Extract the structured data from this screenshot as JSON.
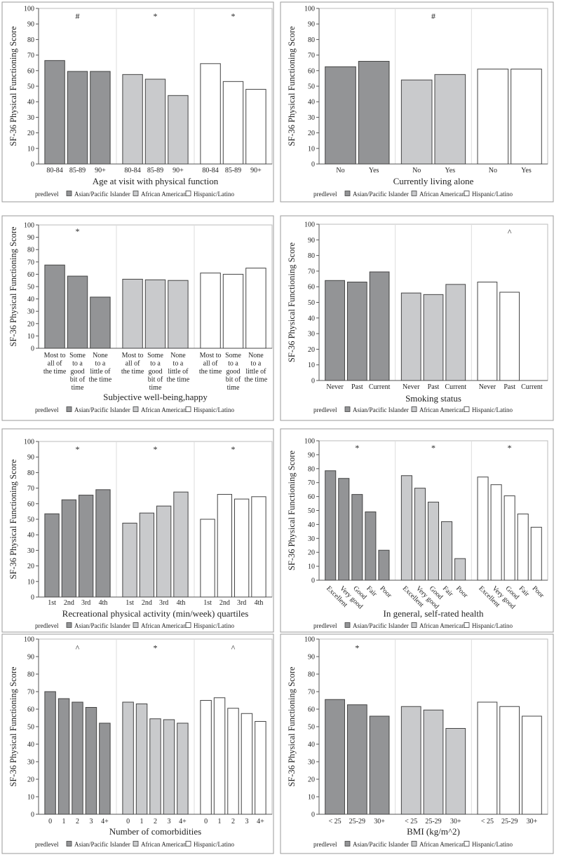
{
  "legend": {
    "title": "predlevel",
    "groups": [
      "Asian/Pacific Islander",
      "African American",
      "Hispanic/Latino"
    ],
    "colors": [
      "#939496",
      "#c9cacc",
      "#ffffff"
    ]
  },
  "chart_data": [
    {
      "type": "bar",
      "ylabel": "SF-36 Physical Functioning Score",
      "xlabel": "Age at visit with physical function",
      "ylim": [
        0,
        100
      ],
      "yticks": [
        0,
        10,
        20,
        30,
        40,
        50,
        60,
        70,
        80,
        90,
        100
      ],
      "categories": [
        "80-84",
        "85-89",
        "90+"
      ],
      "series": [
        {
          "name": "Asian/Pacific Islander",
          "values": [
            66.5,
            59.5,
            59.5
          ],
          "annotation": "#"
        },
        {
          "name": "African American",
          "values": [
            57.5,
            54.5,
            44
          ],
          "annotation": "*"
        },
        {
          "name": "Hispanic/Latino",
          "values": [
            64.5,
            53,
            48
          ],
          "annotation": "*"
        }
      ]
    },
    {
      "type": "bar",
      "ylabel": "SF-36 Physical Functioning Score",
      "xlabel": "Currently living alone",
      "ylim": [
        0,
        100
      ],
      "yticks": [
        0,
        10,
        20,
        30,
        40,
        50,
        60,
        70,
        80,
        90,
        100
      ],
      "categories": [
        "No",
        "Yes"
      ],
      "series": [
        {
          "name": "Asian/Pacific Islander",
          "values": [
            62.5,
            66
          ],
          "annotation": ""
        },
        {
          "name": "African American",
          "values": [
            54,
            57.5
          ],
          "annotation": "#"
        },
        {
          "name": "Hispanic/Latino",
          "values": [
            61,
            61
          ],
          "annotation": ""
        }
      ]
    },
    {
      "type": "bar",
      "ylabel": "SF-36 Physical Functioning Score",
      "xlabel": "Subjective well-being,happy",
      "ylim": [
        0,
        100
      ],
      "yticks": [
        0,
        10,
        20,
        30,
        40,
        50,
        60,
        70,
        80,
        90,
        100
      ],
      "categories": [
        [
          "Most to",
          "all of",
          "the time"
        ],
        [
          "Some",
          "to a",
          "good",
          "bit of",
          "time"
        ],
        [
          "None",
          "to a",
          "little of",
          "the time"
        ]
      ],
      "series": [
        {
          "name": "Asian/Pacific Islander",
          "values": [
            67.5,
            58.5,
            41.5
          ],
          "annotation": "*"
        },
        {
          "name": "African American",
          "values": [
            56,
            55.5,
            55
          ],
          "annotation": ""
        },
        {
          "name": "Hispanic/Latino",
          "values": [
            61,
            60,
            65
          ],
          "annotation": ""
        }
      ]
    },
    {
      "type": "bar",
      "ylabel": "SF-36 Physical Functioning Score",
      "xlabel": "Smoking status",
      "ylim": [
        0,
        100
      ],
      "yticks": [
        0,
        10,
        20,
        30,
        40,
        50,
        60,
        70,
        80,
        90,
        100
      ],
      "categories": [
        "Never",
        "Past",
        "Current"
      ],
      "series": [
        {
          "name": "Asian/Pacific Islander",
          "values": [
            64,
            63,
            69.5
          ],
          "annotation": ""
        },
        {
          "name": "African American",
          "values": [
            56,
            55,
            61.5
          ],
          "annotation": ""
        },
        {
          "name": "Hispanic/Latino",
          "values": [
            63,
            56.5,
            null
          ],
          "annotation": "^"
        }
      ]
    },
    {
      "type": "bar",
      "ylabel": "SF-36 Physical Functioning Score",
      "xlabel": "Recreational physical activity (min/week) quartiles",
      "ylim": [
        0,
        100
      ],
      "yticks": [
        0,
        10,
        20,
        30,
        40,
        50,
        60,
        70,
        80,
        90,
        100
      ],
      "categories": [
        "1st",
        "2nd",
        "3rd",
        "4th"
      ],
      "series": [
        {
          "name": "Asian/Pacific Islander",
          "values": [
            53.5,
            62.5,
            65.5,
            69
          ],
          "annotation": "*"
        },
        {
          "name": "African American",
          "values": [
            47.5,
            54,
            58.5,
            67.5
          ],
          "annotation": "*"
        },
        {
          "name": "Hispanic/Latino",
          "values": [
            50,
            66,
            63,
            64.5
          ],
          "annotation": "*"
        }
      ]
    },
    {
      "type": "bar",
      "ylabel": "SF-36 Physical Functioning Score",
      "xlabel": "In general, self-rated health",
      "ylim": [
        0,
        100
      ],
      "yticks": [
        0,
        10,
        20,
        30,
        40,
        50,
        60,
        70,
        80,
        90,
        100
      ],
      "categories": [
        "Excellent",
        "Very good",
        "Good",
        "Fair",
        "Poor"
      ],
      "rotated_labels": true,
      "series": [
        {
          "name": "Asian/Pacific Islander",
          "values": [
            78.5,
            73,
            61.5,
            49,
            21.5
          ],
          "annotation": "*"
        },
        {
          "name": "African American",
          "values": [
            75,
            66,
            56,
            42,
            15.5
          ],
          "annotation": "*"
        },
        {
          "name": "Hispanic/Latino",
          "values": [
            74,
            68.5,
            60.5,
            47.5,
            38
          ],
          "annotation": "*"
        }
      ]
    },
    {
      "type": "bar",
      "ylabel": "SF-36 Physical Functioning Score",
      "xlabel": "Number of comorbidities",
      "ylim": [
        0,
        100
      ],
      "yticks": [
        0,
        10,
        20,
        30,
        40,
        50,
        60,
        70,
        80,
        90,
        100
      ],
      "categories": [
        "0",
        "1",
        "2",
        "3",
        "4+"
      ],
      "series": [
        {
          "name": "Asian/Pacific Islander",
          "values": [
            70,
            66,
            64,
            61,
            52
          ],
          "annotation": "^"
        },
        {
          "name": "African American",
          "values": [
            64,
            63,
            54.5,
            54,
            52
          ],
          "annotation": "*"
        },
        {
          "name": "Hispanic/Latino",
          "values": [
            65,
            66.5,
            60.5,
            57.5,
            53
          ],
          "annotation": "^"
        }
      ]
    },
    {
      "type": "bar",
      "ylabel": "SF-36 Physical Functioning Score",
      "xlabel": "BMI (kg/m^2)",
      "ylim": [
        0,
        100
      ],
      "yticks": [
        0,
        10,
        20,
        30,
        40,
        50,
        60,
        70,
        80,
        90,
        100
      ],
      "categories": [
        "< 25",
        "25-29",
        "30+"
      ],
      "series": [
        {
          "name": "Asian/Pacific Islander",
          "values": [
            65.5,
            62.5,
            56
          ],
          "annotation": "*"
        },
        {
          "name": "African American",
          "values": [
            61.5,
            59.5,
            49
          ],
          "annotation": ""
        },
        {
          "name": "Hispanic/Latino",
          "values": [
            64,
            61.5,
            56
          ],
          "annotation": ""
        }
      ]
    }
  ]
}
